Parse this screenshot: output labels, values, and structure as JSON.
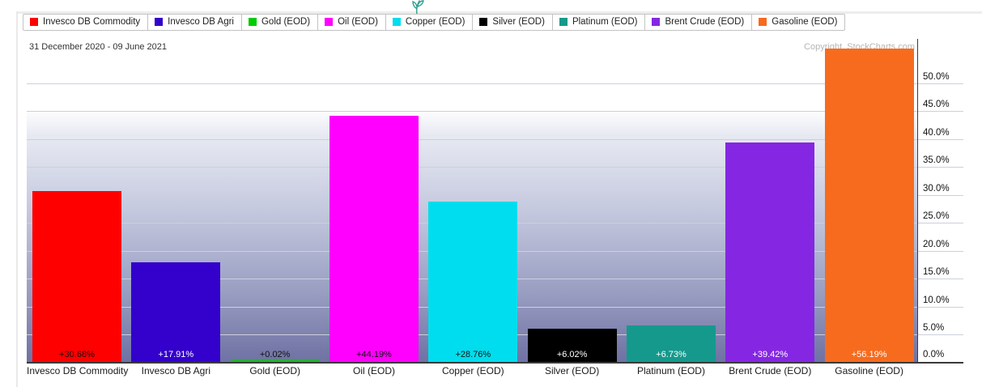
{
  "header": {
    "date_range": "31 December 2020 - 09 June 2021",
    "copyright": "Copyright, StockCharts.com"
  },
  "chart_data": {
    "type": "bar",
    "title": "",
    "categories": [
      "Invesco DB Commodity",
      "Invesco DB Agri",
      "Gold (EOD)",
      "Oil (EOD)",
      "Copper (EOD)",
      "Silver (EOD)",
      "Platinum (EOD)",
      "Brent Crude (EOD)",
      "Gasoline (EOD)"
    ],
    "values": [
      30.68,
      17.91,
      0.02,
      44.19,
      28.76,
      6.02,
      6.73,
      39.42,
      56.19
    ],
    "value_labels": [
      "+30.68%",
      "+17.91%",
      "+0.02%",
      "+44.19%",
      "+28.76%",
      "+6.02%",
      "+6.73%",
      "+39.42%",
      "+56.19%"
    ],
    "bar_colors": [
      "#ff0000",
      "#3300cc",
      "#00cc00",
      "#ff00ff",
      "#00ddee",
      "#000000",
      "#15998c",
      "#8527e2",
      "#f76b1e"
    ],
    "value_label_colors": [
      "#111111",
      "#ffffff",
      "#111111",
      "#111111",
      "#111111",
      "#ffffff",
      "#ffffff",
      "#ffffff",
      "#ffffff"
    ],
    "xlabel": "",
    "ylabel": "",
    "ylim": [
      0,
      58
    ],
    "grid": true,
    "legend_position": "top",
    "y_ticks": [
      {
        "value": 0,
        "label": "0.0%"
      },
      {
        "value": 5,
        "label": "5.0%"
      },
      {
        "value": 10,
        "label": "10.0%"
      },
      {
        "value": 15,
        "label": "15.0%"
      },
      {
        "value": 20,
        "label": "20.0%"
      },
      {
        "value": 25,
        "label": "25.0%"
      },
      {
        "value": 30,
        "label": "30.0%"
      },
      {
        "value": 35,
        "label": "35.0%"
      },
      {
        "value": 40,
        "label": "40.0%"
      },
      {
        "value": 45,
        "label": "45.0%"
      },
      {
        "value": 50,
        "label": "50.0%"
      }
    ]
  }
}
